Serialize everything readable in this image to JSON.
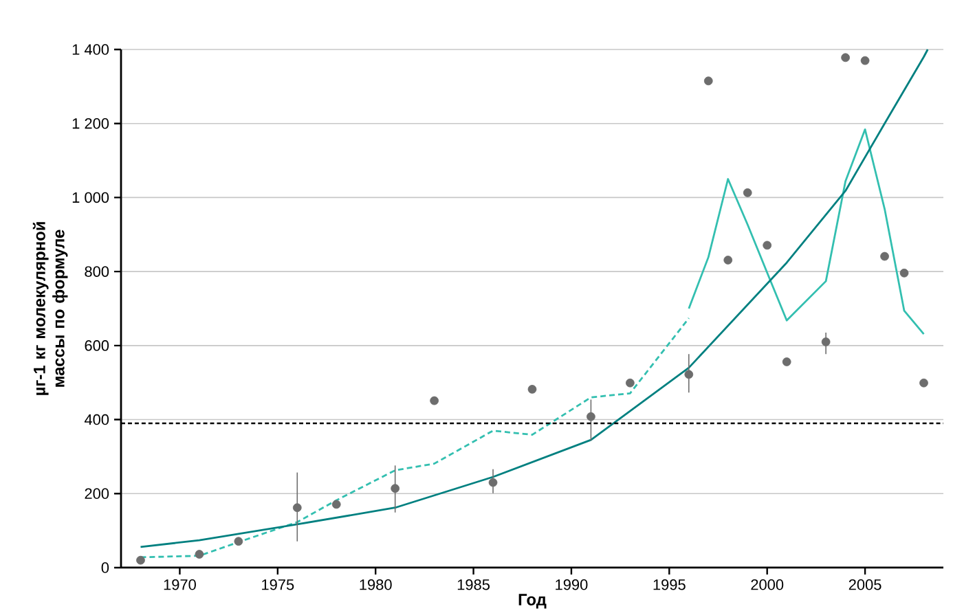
{
  "chart_data": {
    "type": "scatter",
    "xlabel": "Год",
    "ylabel": "µг-1 кг молекулярной массы по формуле",
    "x": [
      1968,
      1971,
      1973,
      1976,
      1978,
      1981,
      1983,
      1986,
      1988,
      1991,
      1993,
      1996,
      1997,
      1998,
      1999,
      2000,
      2001,
      2003,
      2004,
      2005,
      2006,
      2007,
      2008
    ],
    "xlim": [
      1967,
      2009
    ],
    "xticks": [
      1970,
      1975,
      1980,
      1985,
      1990,
      1995,
      2000,
      2005
    ],
    "ylim": [
      0,
      1400
    ],
    "yticks": [
      0,
      200,
      400,
      600,
      800,
      {
        "value": 1000,
        "label": "1 000"
      },
      {
        "value": 1200,
        "label": "1 200"
      },
      {
        "value": 1400,
        "label": "1 400"
      }
    ],
    "grid": "y",
    "ref_lines": [
      {
        "axis": "y",
        "value": 390,
        "color": "#000000",
        "line_style": "dashed"
      }
    ],
    "series": [
      {
        "type": "line",
        "color": "#33bfb0",
        "line_style": "dashed",
        "marker": "none",
        "x": [
          1968,
          1971,
          1973,
          1976,
          1978,
          1981,
          1983,
          1986,
          1988,
          1991,
          1993,
          1996
        ],
        "values": [
          28,
          32,
          69,
          123,
          182,
          263,
          281,
          370,
          359,
          460,
          471,
          674
        ]
      },
      {
        "type": "line",
        "color": "#33bfb0",
        "line_style": "solid",
        "marker": "none",
        "x": [
          1996,
          1997,
          1998,
          1999,
          2000,
          2001,
          2003,
          2004,
          2005,
          2006,
          2007,
          2008
        ],
        "values": [
          700,
          839,
          1050,
          927,
          797,
          668,
          774,
          1044,
          1184,
          969,
          694,
          631
        ]
      },
      {
        "type": "line",
        "color": "#008080",
        "line_style": "solid",
        "marker": "none",
        "x": [
          1968,
          1971,
          1976,
          1981,
          1986,
          1991,
          1996,
          2001,
          2004,
          2006,
          2008,
          2008.2
        ],
        "values": [
          56,
          74,
          117,
          162,
          245,
          345,
          540,
          824,
          1018,
          1200,
          1380,
          1400
        ]
      },
      {
        "color": "#6d6d6d",
        "marker": "circle",
        "values": [
          20,
          36,
          71,
          162,
          171,
          214,
          451,
          230,
          482,
          408,
          499,
          522,
          1315,
          831,
          1013,
          871,
          556,
          610,
          1378,
          1370,
          841,
          796,
          499
        ],
        "errors": [
          null,
          null,
          null,
          [
            71,
            257
          ],
          null,
          [
            149,
            276
          ],
          null,
          [
            201,
            266
          ],
          null,
          [
            343,
            454
          ],
          null,
          [
            473,
            577
          ],
          null,
          null,
          null,
          null,
          null,
          [
            577,
            635
          ],
          null,
          null,
          null,
          null,
          null
        ]
      }
    ]
  }
}
